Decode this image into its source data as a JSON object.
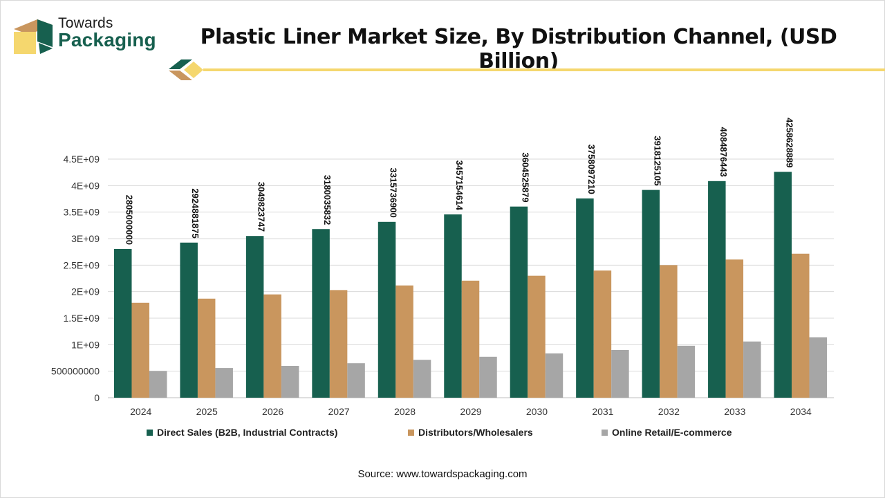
{
  "header": {
    "brand_line1": "Towards",
    "brand_line2": "Packaging",
    "title": "Plastic Liner Market Size, By Distribution Channel, (USD Billion)"
  },
  "colors": {
    "direct": "#17604f",
    "distributors": "#c9965e",
    "online": "#a6a6a6",
    "accent_yellow": "#f5d76e",
    "brand_green": "#17604f",
    "brand_tan": "#c9965e"
  },
  "chart_data": {
    "type": "bar",
    "categories": [
      "2024",
      "2025",
      "2026",
      "2027",
      "2028",
      "2029",
      "2030",
      "2031",
      "2032",
      "2033",
      "2034"
    ],
    "series": [
      {
        "name": "Direct Sales (B2B, Industrial Contracts)",
        "values": [
          2805000000,
          2924881875,
          3049823747,
          3180035832,
          3315736900,
          3457154614,
          3604525879,
          3758097210,
          3918125105,
          4084876443,
          4258628889
        ],
        "data_labels": [
          "2805000000",
          "2924881875",
          "3049823747",
          "3180035832",
          "3315736900",
          "3457154614",
          "3604525879",
          "3758097210",
          "3918125105",
          "4084876443",
          "4258628889"
        ]
      },
      {
        "name": "Distributors/Wholesalers",
        "values": [
          1790000000,
          1868000000,
          1948000000,
          2030000000,
          2117000000,
          2207000000,
          2300000000,
          2398000000,
          2500000000,
          2606000000,
          2716000000
        ]
      },
      {
        "name": "Online Retail/E-commerce",
        "values": [
          505000000,
          560000000,
          600000000,
          650000000,
          715000000,
          772000000,
          835000000,
          900000000,
          980000000,
          1060000000,
          1140000000
        ]
      }
    ],
    "ylim": [
      0,
      4500000000
    ],
    "yticks": [
      0,
      500000000,
      1000000000,
      1500000000,
      2000000000,
      2500000000,
      3000000000,
      3500000000,
      4000000000,
      4500000000
    ],
    "ytick_labels": [
      "0",
      "500000000",
      "1E+09",
      "1.5E+09",
      "2E+09",
      "2.5E+09",
      "3E+09",
      "3.5E+09",
      "4E+09",
      "4.5E+09"
    ],
    "grid": true,
    "legend": "bottom",
    "xlabel": "",
    "ylabel": ""
  },
  "footer": {
    "source": "Source: www.towardspackaging.com"
  }
}
